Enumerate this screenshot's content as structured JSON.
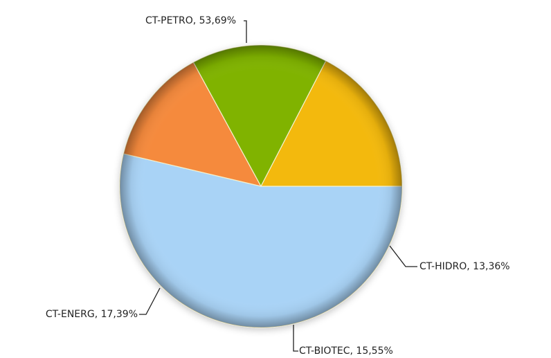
{
  "chart_data": {
    "type": "pie",
    "series": [
      {
        "values": [
          53.69,
          13.36,
          15.55,
          17.39
        ]
      }
    ],
    "slices": [
      {
        "label": "CT-PETRO",
        "value": 53.69,
        "display": "CT-PETRO, 53,69%",
        "color": "#a9d3f6"
      },
      {
        "label": "CT-HIDRO",
        "value": 13.36,
        "display": "CT-HIDRO, 13,36%",
        "color": "#f58a3d"
      },
      {
        "label": "CT-BIOTEC",
        "value": 15.55,
        "display": "CT-BIOTEC, 15,55%",
        "color": "#80b303"
      },
      {
        "label": "CT-ENERG",
        "value": 17.39,
        "display": "CT-ENERG, 17,39%",
        "color": "#f3b90d"
      }
    ],
    "legend": "none"
  }
}
